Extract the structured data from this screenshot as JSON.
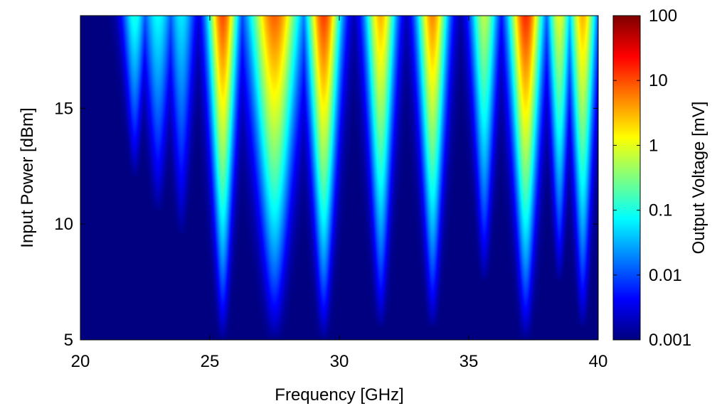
{
  "chart_data": {
    "type": "heatmap",
    "title": "",
    "xlabel": "Frequency [GHz]",
    "ylabel": "Input Power [dBm]",
    "colorbar_label": "Output Voltage [mV]",
    "xlim": [
      20,
      40
    ],
    "ylim": [
      5,
      19
    ],
    "x_ticks": [
      20,
      25,
      30,
      35,
      40
    ],
    "x_tick_labels": [
      "20",
      "25",
      "30",
      "35",
      "40"
    ],
    "y_ticks": [
      5,
      10,
      15
    ],
    "y_tick_labels": [
      "5",
      "10",
      "15"
    ],
    "color_scale": "log",
    "colormap": "jet",
    "clim_mV": [
      0.001,
      100
    ],
    "colorbar_ticks": [
      0.001,
      0.01,
      0.1,
      1,
      10,
      100
    ],
    "colorbar_tick_labels": [
      "0.001",
      "0.01",
      "0.1",
      "1",
      "10",
      "100"
    ],
    "power_dBm": [
      5,
      6,
      7,
      8,
      9,
      10,
      11,
      12,
      13,
      14,
      15,
      16,
      17,
      18,
      19
    ],
    "resonances": [
      {
        "freq_GHz": 22.1,
        "width_GHz": 0.35,
        "peak_mV": 0.1,
        "onset_dBm": 12.0
      },
      {
        "freq_GHz": 23.0,
        "width_GHz": 0.45,
        "peak_mV": 0.08,
        "onset_dBm": 10.5
      },
      {
        "freq_GHz": 23.9,
        "width_GHz": 0.4,
        "peak_mV": 0.06,
        "onset_dBm": 9.5
      },
      {
        "freq_GHz": 25.5,
        "width_GHz": 0.45,
        "peak_mV": 10,
        "onset_dBm": 5.0
      },
      {
        "freq_GHz": 27.5,
        "width_GHz": 0.75,
        "peak_mV": 8,
        "onset_dBm": 5.0
      },
      {
        "freq_GHz": 29.4,
        "width_GHz": 0.5,
        "peak_mV": 12,
        "onset_dBm": 5.0
      },
      {
        "freq_GHz": 31.6,
        "width_GHz": 0.45,
        "peak_mV": 3,
        "onset_dBm": 5.5
      },
      {
        "freq_GHz": 33.6,
        "width_GHz": 0.45,
        "peak_mV": 5,
        "onset_dBm": 5.5
      },
      {
        "freq_GHz": 35.6,
        "width_GHz": 0.4,
        "peak_mV": 0.6,
        "onset_dBm": 7.5
      },
      {
        "freq_GHz": 37.2,
        "width_GHz": 0.5,
        "peak_mV": 15,
        "onset_dBm": 5.0
      },
      {
        "freq_GHz": 38.5,
        "width_GHz": 0.35,
        "peak_mV": 1,
        "onset_dBm": 7.5
      },
      {
        "freq_GHz": 39.4,
        "width_GHz": 0.4,
        "peak_mV": 3,
        "onset_dBm": 5.5
      }
    ]
  }
}
